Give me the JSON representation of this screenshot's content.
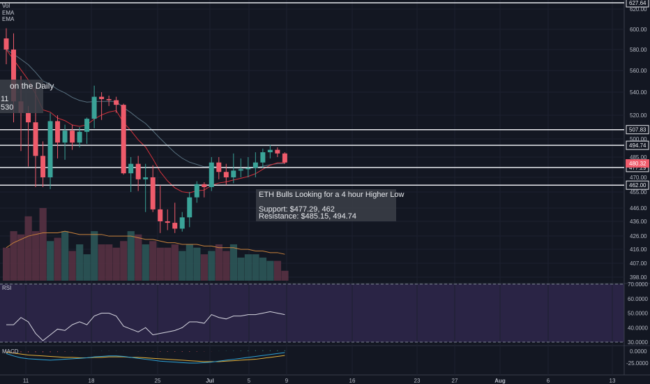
{
  "indicators": {
    "vol": "Vol",
    "ema1": "EMA",
    "ema2": "EMA",
    "rsi": "RSI",
    "macd": "MACD"
  },
  "notes": {
    "main_title": "ETH Bulls Looking for a 4 hour Higher Low",
    "support": "Support: $477.29, 462",
    "resistance": "Resistance: $485.15, 494.74",
    "left_title": "on the Daily",
    "left_line1": "11",
    "left_line2": "530"
  },
  "colors": {
    "up": "#3aa398",
    "down": "#ef5b6b",
    "ema_fast": "#d4323c",
    "ema_slow": "#58707f",
    "rsi_fill": "#2a2445",
    "rsi_line": "#d6d6e0",
    "macd_line": "#2ea3d6",
    "signal_line": "#e6b23a"
  },
  "chart_data": {
    "type": "candlestick",
    "x_ticks": [
      "11",
      "18",
      "25",
      "Jul",
      "5",
      "9",
      "16",
      "23",
      "27",
      "Aug",
      "6",
      "13"
    ],
    "price_axis": [
      620.0,
      600.0,
      580.0,
      560.0,
      540.0,
      520.0,
      500.0,
      485.0,
      470.0,
      455.0,
      446.0,
      436.0,
      426.0,
      416.0,
      407.0,
      398.0
    ],
    "price_top_label": "627.64",
    "levels": [
      {
        "label": "627.64",
        "value": 627.64
      },
      {
        "label": "507.83",
        "value": 507.83
      },
      {
        "label": "494.74",
        "value": 494.74
      },
      {
        "label": "477.29",
        "value": 477.29
      },
      {
        "label": "462.00",
        "value": 462.0
      }
    ],
    "current_price": "480.32",
    "candles": [
      [
        591,
        601,
        566,
        580
      ],
      [
        580,
        596,
        514,
        532
      ],
      [
        532,
        555,
        490,
        522
      ],
      [
        522,
        528,
        478,
        514
      ],
      [
        514,
        545,
        460,
        486
      ],
      [
        486,
        498,
        460,
        470
      ],
      [
        470,
        522,
        458,
        515
      ],
      [
        515,
        520,
        484,
        497
      ],
      [
        497,
        512,
        483,
        507
      ],
      [
        507,
        512,
        491,
        497
      ],
      [
        497,
        510,
        493,
        506
      ],
      [
        506,
        518,
        496,
        517
      ],
      [
        517,
        546,
        509,
        536
      ],
      [
        536,
        540,
        516,
        534
      ],
      [
        534,
        537,
        528,
        533
      ],
      [
        533,
        536,
        522,
        529
      ],
      [
        529,
        530,
        472,
        473
      ],
      [
        473,
        485,
        455,
        480
      ],
      [
        480,
        486,
        456,
        468
      ],
      [
        468,
        480,
        443,
        470
      ],
      [
        470,
        479,
        443,
        445
      ],
      [
        445,
        462,
        428,
        436
      ],
      [
        436,
        445,
        430,
        435
      ],
      [
        435,
        449,
        428,
        431
      ],
      [
        431,
        443,
        429,
        439
      ],
      [
        439,
        455,
        432,
        452
      ],
      [
        452,
        466,
        449,
        463
      ],
      [
        463,
        465,
        452,
        460
      ],
      [
        460,
        485,
        456,
        481
      ],
      [
        481,
        485,
        468,
        474
      ],
      [
        474,
        480,
        462,
        470
      ],
      [
        470,
        488,
        464,
        475
      ],
      [
        475,
        484,
        470,
        476
      ],
      [
        476,
        485,
        470,
        477
      ],
      [
        477,
        489,
        470,
        481
      ],
      [
        481,
        492,
        477,
        489
      ],
      [
        489,
        495,
        484,
        491
      ],
      [
        491,
        493,
        485,
        488
      ],
      [
        488,
        489,
        480,
        481
      ]
    ],
    "volume": [
      20,
      30,
      28,
      39,
      30,
      44,
      24,
      26,
      30,
      18,
      22,
      16,
      30,
      22,
      22,
      20,
      24,
      30,
      28,
      22,
      24,
      20,
      20,
      22,
      18,
      22,
      20,
      16,
      18,
      22,
      18,
      22,
      14,
      16,
      16,
      14,
      12,
      12,
      6
    ],
    "rsi": {
      "axis": [
        "70.0000",
        "60.0000",
        "50.0000",
        "40.0000",
        "30.0000"
      ],
      "values": [
        42,
        42,
        47,
        44,
        36,
        31,
        35,
        39,
        38,
        42,
        44,
        42,
        48,
        50,
        50,
        48,
        41,
        39,
        37,
        40,
        35,
        36,
        37,
        38,
        40,
        44,
        44,
        43,
        49,
        47,
        46,
        48,
        48,
        49,
        49,
        50,
        51,
        50,
        49
      ]
    },
    "macd": {
      "axis": [
        "0.0000",
        "-25.0000"
      ],
      "macd": [
        -5,
        -10,
        -14,
        -16,
        -17,
        -18,
        -19,
        -18,
        -17,
        -16,
        -15,
        -14,
        -12,
        -11,
        -10,
        -10,
        -11,
        -13,
        -15,
        -17,
        -19,
        -21,
        -22,
        -23,
        -24,
        -25,
        -25,
        -24,
        -23,
        -21,
        -19,
        -17,
        -15,
        -13,
        -11,
        -9,
        -7,
        -5,
        -3
      ],
      "signal": [
        -2,
        -4,
        -6,
        -8,
        -9,
        -10,
        -11,
        -12,
        -13,
        -13,
        -14,
        -14,
        -13,
        -13,
        -12,
        -12,
        -12,
        -13,
        -13,
        -14,
        -15,
        -16,
        -17,
        -18,
        -19,
        -20,
        -21,
        -22,
        -22,
        -22,
        -21,
        -20,
        -19,
        -18,
        -17,
        -15,
        -13,
        -11,
        -9
      ]
    }
  }
}
